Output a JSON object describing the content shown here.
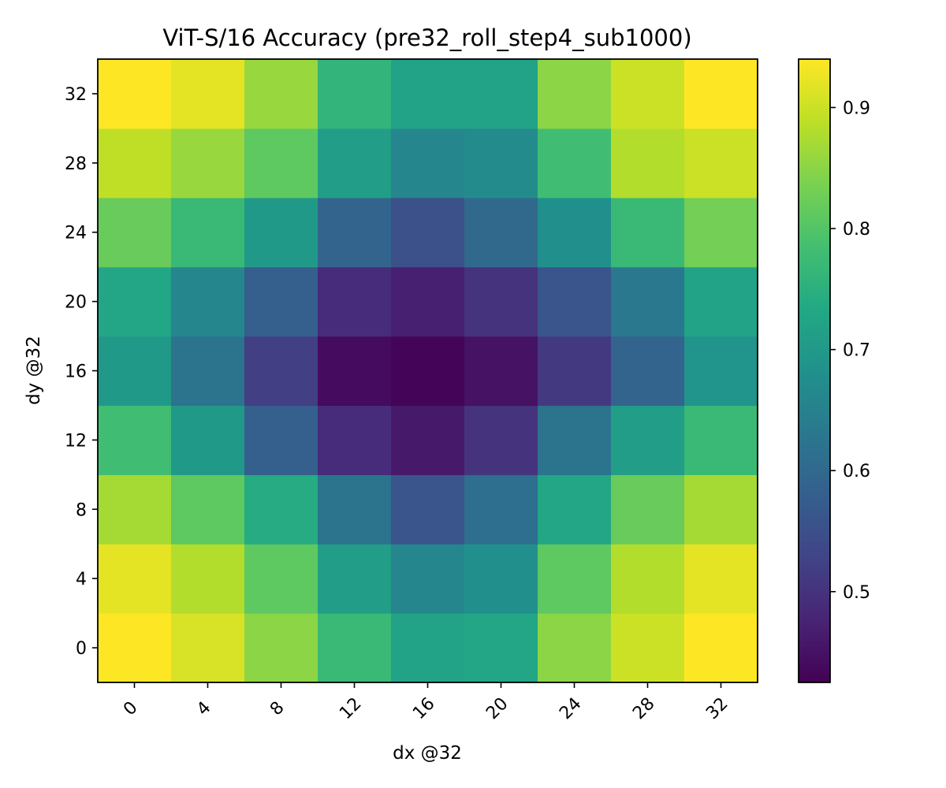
{
  "chart_data": {
    "type": "heatmap",
    "title": "ViT-S/16 Accuracy (pre32_roll_step4_sub1000)",
    "xlabel": "dx @32",
    "ylabel": "dy @32",
    "x": [
      0,
      4,
      8,
      12,
      16,
      20,
      24,
      28,
      32
    ],
    "y": [
      0,
      4,
      8,
      12,
      16,
      20,
      24,
      28,
      32
    ],
    "values": [
      [
        0.94,
        0.91,
        0.85,
        0.77,
        0.72,
        0.73,
        0.85,
        0.9,
        0.94
      ],
      [
        0.92,
        0.88,
        0.81,
        0.71,
        0.66,
        0.68,
        0.81,
        0.88,
        0.92
      ],
      [
        0.87,
        0.81,
        0.74,
        0.62,
        0.56,
        0.61,
        0.73,
        0.82,
        0.87
      ],
      [
        0.78,
        0.7,
        0.58,
        0.49,
        0.46,
        0.5,
        0.62,
        0.71,
        0.77
      ],
      [
        0.7,
        0.62,
        0.52,
        0.44,
        0.43,
        0.45,
        0.51,
        0.59,
        0.69
      ],
      [
        0.73,
        0.66,
        0.58,
        0.49,
        0.47,
        0.5,
        0.56,
        0.63,
        0.72
      ],
      [
        0.82,
        0.77,
        0.7,
        0.59,
        0.55,
        0.6,
        0.68,
        0.77,
        0.83
      ],
      [
        0.89,
        0.86,
        0.81,
        0.71,
        0.66,
        0.67,
        0.78,
        0.88,
        0.9
      ],
      [
        0.94,
        0.92,
        0.86,
        0.76,
        0.72,
        0.72,
        0.85,
        0.9,
        0.94
      ]
    ],
    "colormap": "viridis",
    "vmin": 0.425,
    "vmax": 0.94,
    "colorbar_ticks": [
      0.5,
      0.6,
      0.7,
      0.8,
      0.9
    ],
    "x_tick_rotation": 45,
    "grid": false
  }
}
